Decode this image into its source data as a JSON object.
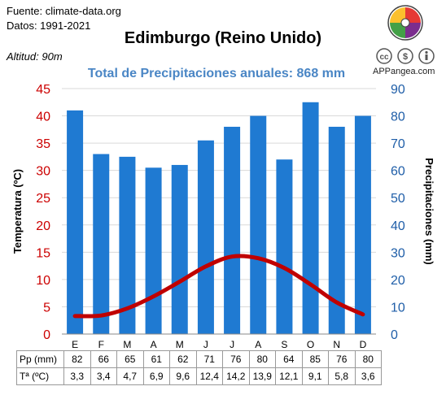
{
  "header": {
    "source": "Fuente: climate-data.org",
    "dates": "Datos: 1991-2021",
    "altitude": "Altitud: 90m",
    "brand": "APPangea.com"
  },
  "chart_data": {
    "type": "bar",
    "title": "Edimburgo (Reino Unido)",
    "subtitle": "Total de Precipitaciones anuales: 868 mm",
    "categories": [
      "E",
      "F",
      "M",
      "A",
      "M",
      "J",
      "J",
      "A",
      "S",
      "O",
      "N",
      "D"
    ],
    "series": [
      {
        "name": "Pp (mm)",
        "type": "bar",
        "axis": "right",
        "color": "#1f7ad2",
        "values": [
          82,
          66,
          65,
          61,
          62,
          71,
          76,
          80,
          64,
          85,
          76,
          80
        ]
      },
      {
        "name": "Tª (ºC)",
        "type": "line",
        "axis": "left",
        "color": "#c00000",
        "values": [
          3.3,
          3.4,
          4.7,
          6.9,
          9.6,
          12.4,
          14.2,
          13.9,
          12.1,
          9.1,
          5.8,
          3.6
        ]
      }
    ],
    "ylabel_left": "Temperatura (ºC)",
    "ylabel_right": "Precipitaciones (mm)",
    "ylim_left": [
      0,
      45
    ],
    "ylim_right": [
      0,
      90
    ],
    "yticks_left": [
      "0",
      "5",
      "10",
      "15",
      "20",
      "25",
      "30",
      "35",
      "40",
      "45"
    ],
    "yticks_right": [
      "0",
      "10",
      "20",
      "30",
      "40",
      "50",
      "60",
      "70",
      "80",
      "90"
    ],
    "grid": true,
    "legend": "none"
  },
  "table": {
    "row_labels": [
      "Pp (mm)",
      "Tª (ºC)"
    ],
    "pp": [
      "82",
      "66",
      "65",
      "61",
      "62",
      "71",
      "76",
      "80",
      "64",
      "85",
      "76",
      "80"
    ],
    "temp": [
      "3,3",
      "3,4",
      "4,7",
      "6,9",
      "9,6",
      "12,4",
      "14,2",
      "13,9",
      "12,1",
      "9,1",
      "5,8",
      "3,6"
    ]
  }
}
